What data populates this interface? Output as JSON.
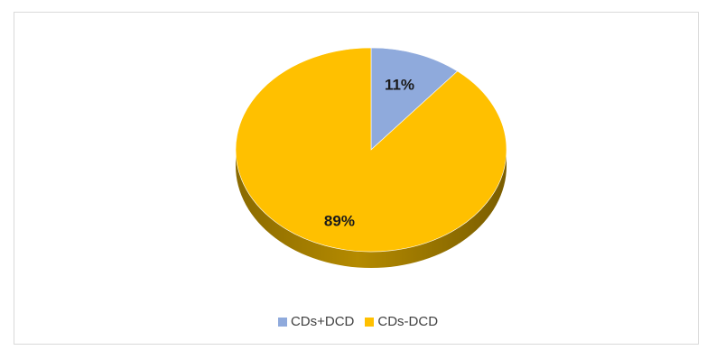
{
  "chart_data": {
    "type": "pie",
    "title": "",
    "categories": [
      "CDs+DCD",
      "CDs-DCD"
    ],
    "values": [
      11,
      89
    ],
    "data_labels": [
      "11%",
      "89%"
    ],
    "colors": [
      "#8FAADC",
      "#FFC000"
    ],
    "side_colors": [
      "#5f7aa8",
      "#9c7a00"
    ],
    "three_d": true,
    "legend_position": "bottom"
  },
  "legend": {
    "items": [
      {
        "label": "CDs+DCD",
        "color": "#8FAADC"
      },
      {
        "label": "CDs-DCD",
        "color": "#FFC000"
      }
    ]
  }
}
